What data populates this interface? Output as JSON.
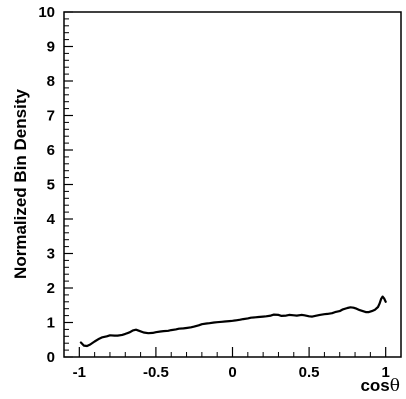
{
  "chart_data": {
    "type": "line",
    "title": "",
    "xlabel": "cosθ",
    "xlabel_parts": [
      "cos",
      "θ"
    ],
    "ylabel": "Normalized Bin Density",
    "xlim": [
      -1.1,
      1.1
    ],
    "ylim": [
      0,
      10
    ],
    "xticks": [
      -1,
      -0.5,
      0,
      0.5,
      1
    ],
    "xtick_labels": [
      "-1",
      "-0.5",
      "0",
      "0.5",
      "1"
    ],
    "yticks": [
      0,
      1,
      2,
      3,
      4,
      5,
      6,
      7,
      8,
      9,
      10
    ],
    "ytick_labels": [
      "0",
      "1",
      "2",
      "3",
      "4",
      "5",
      "6",
      "7",
      "8",
      "9",
      "10"
    ],
    "grid": false,
    "line_color": "#000000",
    "series": [
      {
        "x": [
          -0.99,
          -0.97,
          -0.95,
          -0.93,
          -0.9,
          -0.87,
          -0.85,
          -0.82,
          -0.8,
          -0.77,
          -0.75,
          -0.72,
          -0.7,
          -0.67,
          -0.65,
          -0.63,
          -0.61,
          -0.58,
          -0.55,
          -0.52,
          -0.5,
          -0.47,
          -0.45,
          -0.42,
          -0.4,
          -0.37,
          -0.35,
          -0.32,
          -0.3,
          -0.27,
          -0.25,
          -0.22,
          -0.2,
          -0.17,
          -0.15,
          -0.12,
          -0.1,
          -0.07,
          -0.05,
          -0.02,
          0,
          0.02,
          0.05,
          0.07,
          0.1,
          0.12,
          0.15,
          0.17,
          0.2,
          0.22,
          0.25,
          0.27,
          0.3,
          0.32,
          0.35,
          0.37,
          0.4,
          0.42,
          0.45,
          0.47,
          0.5,
          0.52,
          0.55,
          0.57,
          0.6,
          0.62,
          0.65,
          0.67,
          0.7,
          0.72,
          0.75,
          0.77,
          0.79,
          0.81,
          0.83,
          0.85,
          0.87,
          0.89,
          0.91,
          0.93,
          0.95,
          0.96,
          0.97,
          0.98,
          0.99,
          1.0
        ],
        "y": [
          0.42,
          0.33,
          0.32,
          0.36,
          0.45,
          0.53,
          0.57,
          0.6,
          0.63,
          0.62,
          0.62,
          0.64,
          0.67,
          0.72,
          0.77,
          0.79,
          0.76,
          0.71,
          0.69,
          0.7,
          0.72,
          0.74,
          0.75,
          0.76,
          0.78,
          0.8,
          0.82,
          0.83,
          0.84,
          0.86,
          0.88,
          0.92,
          0.95,
          0.97,
          0.98,
          1.0,
          1.01,
          1.02,
          1.03,
          1.04,
          1.05,
          1.06,
          1.08,
          1.1,
          1.12,
          1.14,
          1.15,
          1.16,
          1.17,
          1.18,
          1.2,
          1.23,
          1.22,
          1.19,
          1.2,
          1.22,
          1.21,
          1.2,
          1.22,
          1.21,
          1.18,
          1.17,
          1.2,
          1.22,
          1.24,
          1.25,
          1.27,
          1.3,
          1.33,
          1.38,
          1.42,
          1.44,
          1.43,
          1.4,
          1.36,
          1.33,
          1.3,
          1.3,
          1.33,
          1.37,
          1.45,
          1.55,
          1.68,
          1.75,
          1.7,
          1.6
        ]
      }
    ]
  }
}
